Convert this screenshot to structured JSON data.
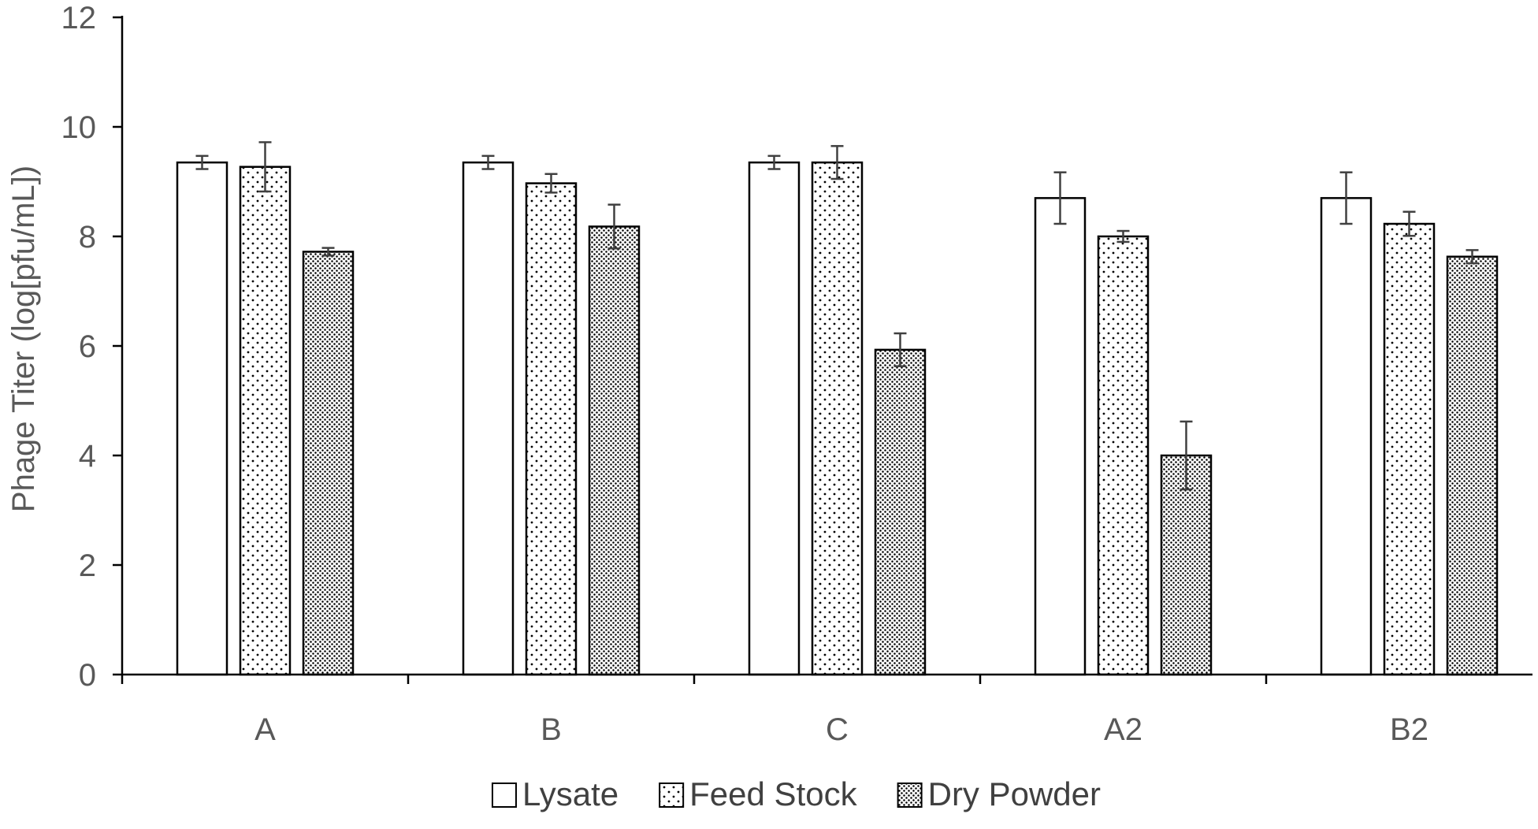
{
  "chart_data": {
    "type": "bar",
    "title": "",
    "xlabel": "",
    "ylabel": "Phage Titer (log[pfu/mL])",
    "ylim": [
      0,
      12
    ],
    "yticks": [
      0,
      2,
      4,
      6,
      8,
      10,
      12
    ],
    "grid": false,
    "legend_position": "bottom",
    "categories": [
      "A",
      "B",
      "C",
      "A2",
      "B2"
    ],
    "series": [
      {
        "name": "Lysate",
        "pattern": "none",
        "values": [
          9.35,
          9.35,
          9.35,
          8.7,
          8.7
        ],
        "errors": [
          0.12,
          0.12,
          0.12,
          0.47,
          0.47
        ]
      },
      {
        "name": "Feed Stock",
        "pattern": "sparse-dots",
        "values": [
          9.27,
          8.97,
          9.35,
          8.0,
          8.23
        ],
        "errors": [
          0.45,
          0.17,
          0.3,
          0.1,
          0.22
        ]
      },
      {
        "name": "Dry Powder",
        "pattern": "dense-dots",
        "values": [
          7.72,
          8.18,
          5.93,
          4.0,
          7.63
        ],
        "errors": [
          0.07,
          0.4,
          0.3,
          0.62,
          0.12
        ]
      }
    ],
    "colors": {
      "axis": "#000000",
      "text": "#595959",
      "bar_fill": "#ffffff",
      "bar_stroke": "#000000",
      "error_bar": "#404040"
    }
  }
}
